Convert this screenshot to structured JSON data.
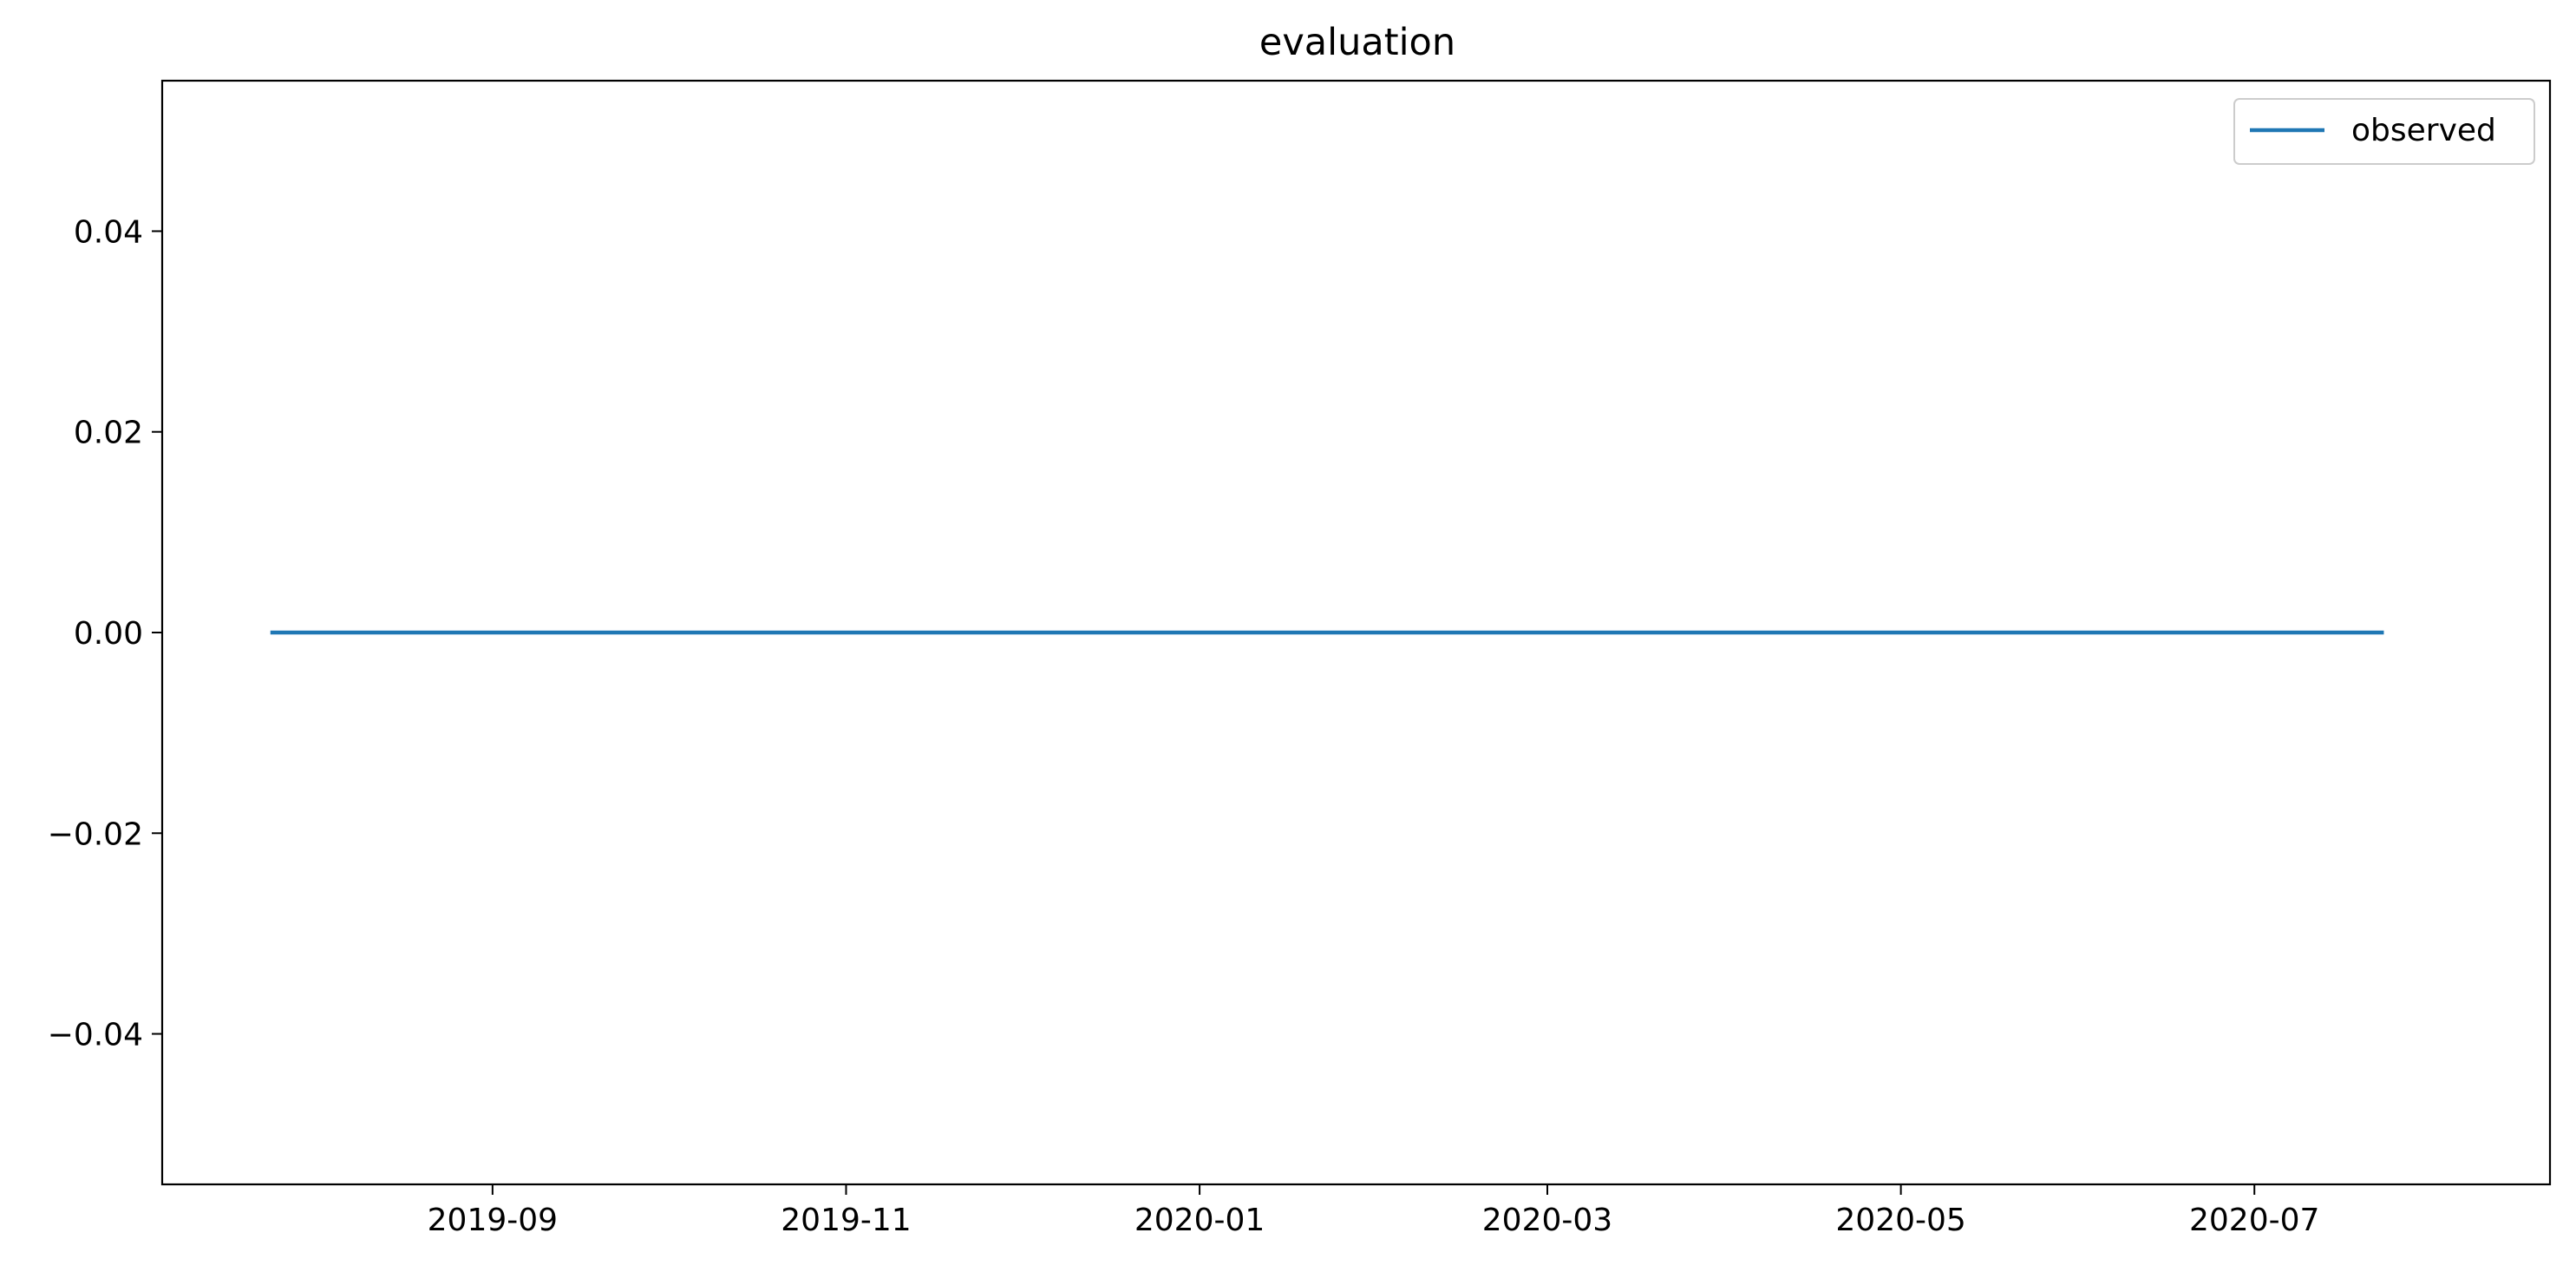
{
  "chart_data": {
    "type": "line",
    "title": "evaluation",
    "xlabel": "",
    "ylabel": "",
    "x_axis_type": "date",
    "x_ticks": [
      "2019-09",
      "2019-11",
      "2020-01",
      "2020-03",
      "2020-05",
      "2020-07"
    ],
    "y_ticks": [
      "−0.04",
      "−0.02",
      "0.00",
      "0.02",
      "0.04"
    ],
    "y_tick_values": [
      -0.04,
      -0.02,
      0.0,
      0.02,
      0.04
    ],
    "ylim": [
      -0.055,
      0.055
    ],
    "xlim": [
      "2019-07-06",
      "2020-08-21"
    ],
    "grid": false,
    "legend_position": "top-right",
    "series": [
      {
        "name": "observed",
        "color": "#1f77b4",
        "x": [
          "2019-07-25",
          "2020-07-23"
        ],
        "y": [
          0.0,
          0.0
        ]
      }
    ]
  }
}
